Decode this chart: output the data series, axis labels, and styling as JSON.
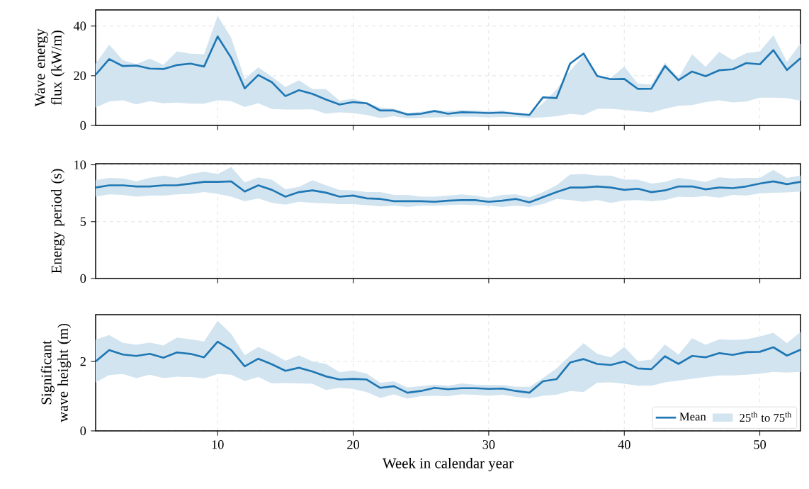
{
  "chart_data": [
    {
      "type": "line",
      "ylabel": "Wave energy flux (kW/m)",
      "x": [
        1,
        2,
        3,
        4,
        5,
        6,
        7,
        8,
        9,
        10,
        11,
        12,
        13,
        14,
        15,
        16,
        17,
        18,
        19,
        20,
        21,
        22,
        23,
        24,
        25,
        26,
        27,
        28,
        29,
        30,
        31,
        32,
        33,
        34,
        35,
        36,
        37,
        38,
        39,
        40,
        41,
        42,
        43,
        44,
        45,
        46,
        47,
        48,
        49,
        50,
        51,
        52,
        53
      ],
      "xlim": [
        1,
        53
      ],
      "xticks": [
        10,
        20,
        30,
        40,
        50
      ],
      "ylim": [
        0,
        46.5
      ],
      "yticks": [
        0,
        20,
        40
      ],
      "grid": true,
      "tick_labels": "y",
      "series": [
        {
          "color": "#1f77b4",
          "values": [
            20.4,
            26.7,
            23.9,
            24.1,
            22.9,
            22.7,
            24.3,
            24.9,
            23.7,
            35.8,
            27.2,
            14.9,
            20.3,
            17.4,
            11.8,
            14.2,
            12.7,
            10.4,
            8.4,
            9.4,
            8.9,
            6.0,
            6.0,
            4.4,
            4.7,
            5.8,
            4.7,
            5.3,
            5.2,
            5.0,
            5.2,
            4.7,
            4.2,
            11.3,
            11.0,
            24.9,
            28.9,
            19.9,
            18.6,
            18.7,
            14.7,
            14.8,
            23.9,
            18.2,
            21.7,
            19.8,
            22.2,
            22.6,
            25.1,
            24.6,
            30.3,
            22.3,
            27.0
          ],
          "upper": [
            24.9,
            32.5,
            26.3,
            24.7,
            26.9,
            24.4,
            29.8,
            28.9,
            28.7,
            44.1,
            35.3,
            18.7,
            23.4,
            19.6,
            15.5,
            18.2,
            14.6,
            14.6,
            9.9,
            10.8,
            9.2,
            7.2,
            6.8,
            5.0,
            5.5,
            6.2,
            5.8,
            6.3,
            6.0,
            5.8,
            6.0,
            5.2,
            4.6,
            9.0,
            14.4,
            22.0,
            28.2,
            19.9,
            19.1,
            23.7,
            16.8,
            16.5,
            25.3,
            19.1,
            28.7,
            23.6,
            29.6,
            26.3,
            29.1,
            29.8,
            36.3,
            25.6,
            33.0
          ],
          "lower": [
            7.2,
            9.6,
            10.1,
            8.5,
            9.8,
            8.9,
            9.2,
            8.8,
            8.8,
            10.1,
            9.8,
            7.4,
            8.9,
            6.6,
            6.4,
            6.4,
            6.5,
            4.7,
            5.3,
            4.9,
            4.2,
            3.0,
            3.7,
            2.8,
            3.0,
            3.2,
            3.4,
            3.5,
            3.5,
            3.2,
            3.4,
            3.4,
            3.0,
            3.3,
            3.7,
            4.6,
            4.2,
            6.6,
            6.7,
            6.3,
            5.7,
            5.2,
            6.7,
            7.9,
            8.2,
            9.4,
            10.1,
            9.3,
            9.6,
            11.2,
            11.2,
            11.0,
            10.0
          ]
        }
      ]
    },
    {
      "type": "line",
      "ylabel": "Energy period (s)",
      "x": [
        1,
        2,
        3,
        4,
        5,
        6,
        7,
        8,
        9,
        10,
        11,
        12,
        13,
        14,
        15,
        16,
        17,
        18,
        19,
        20,
        21,
        22,
        23,
        24,
        25,
        26,
        27,
        28,
        29,
        30,
        31,
        32,
        33,
        34,
        35,
        36,
        37,
        38,
        39,
        40,
        41,
        42,
        43,
        44,
        45,
        46,
        47,
        48,
        49,
        50,
        51,
        52,
        53
      ],
      "xlim": [
        1,
        53
      ],
      "xticks": [
        10,
        20,
        30,
        40,
        50
      ],
      "ylim": [
        0,
        10.1
      ],
      "yticks": [
        0,
        5,
        10
      ],
      "grid": true,
      "tick_labels": "y",
      "series": [
        {
          "color": "#1f77b4",
          "values": [
            8.0,
            8.2,
            8.2,
            8.1,
            8.1,
            8.2,
            8.2,
            8.35,
            8.5,
            8.5,
            8.55,
            7.65,
            8.2,
            7.8,
            7.2,
            7.6,
            7.75,
            7.55,
            7.2,
            7.3,
            7.05,
            7.0,
            6.8,
            6.8,
            6.8,
            6.75,
            6.85,
            6.9,
            6.9,
            6.75,
            6.85,
            7.0,
            6.7,
            7.15,
            7.6,
            8.0,
            8.0,
            8.1,
            8.0,
            7.8,
            7.9,
            7.6,
            7.75,
            8.1,
            8.1,
            7.85,
            8.0,
            7.95,
            8.1,
            8.35,
            8.55,
            8.3,
            8.5
          ],
          "upper": [
            8.65,
            8.85,
            8.8,
            8.55,
            8.85,
            9.05,
            8.85,
            9.2,
            9.4,
            9.2,
            9.8,
            8.45,
            8.9,
            8.7,
            7.85,
            8.05,
            8.65,
            8.2,
            7.8,
            7.75,
            7.6,
            7.6,
            7.35,
            7.35,
            7.2,
            7.2,
            7.3,
            7.4,
            7.3,
            7.1,
            7.35,
            7.4,
            7.15,
            7.6,
            8.2,
            9.15,
            9.2,
            9.05,
            9.05,
            8.7,
            8.7,
            8.35,
            8.5,
            8.85,
            8.7,
            8.5,
            8.9,
            8.8,
            8.85,
            8.85,
            9.55,
            8.85,
            9.05
          ],
          "lower": [
            7.2,
            7.4,
            7.35,
            7.2,
            7.3,
            7.3,
            7.4,
            7.45,
            7.6,
            7.45,
            7.2,
            6.8,
            7.05,
            6.65,
            6.5,
            6.75,
            6.65,
            6.6,
            6.55,
            6.55,
            6.45,
            6.35,
            6.4,
            6.3,
            6.4,
            6.4,
            6.45,
            6.5,
            6.45,
            6.4,
            6.3,
            6.4,
            6.3,
            6.55,
            7.0,
            6.9,
            6.75,
            6.9,
            6.65,
            6.85,
            6.9,
            6.8,
            6.9,
            7.2,
            7.15,
            7.25,
            7.1,
            7.35,
            7.3,
            7.5,
            7.55,
            7.58,
            7.65
          ]
        }
      ]
    },
    {
      "type": "line",
      "ylabel": "Significant wave height (m)",
      "xlabel": "Week in calendar year",
      "x": [
        1,
        2,
        3,
        4,
        5,
        6,
        7,
        8,
        9,
        10,
        11,
        12,
        13,
        14,
        15,
        16,
        17,
        18,
        19,
        20,
        21,
        22,
        23,
        24,
        25,
        26,
        27,
        28,
        29,
        30,
        31,
        32,
        33,
        34,
        35,
        36,
        37,
        38,
        39,
        40,
        41,
        42,
        43,
        44,
        45,
        46,
        47,
        48,
        49,
        50,
        51,
        52,
        53
      ],
      "xlim": [
        1,
        53
      ],
      "xticks": [
        10,
        20,
        30,
        40,
        50
      ],
      "ylim": [
        0,
        3.35
      ],
      "yticks": [
        0,
        2
      ],
      "grid": true,
      "legend": "bottom right",
      "annotations": [
        "25$^{th}$ to 75$^{th}$"
      ],
      "series": [
        {
          "name": "Mean",
          "color": "#1f77b4",
          "values": [
            2.0,
            2.33,
            2.2,
            2.16,
            2.22,
            2.11,
            2.26,
            2.22,
            2.12,
            2.57,
            2.33,
            1.86,
            2.08,
            1.92,
            1.73,
            1.82,
            1.71,
            1.57,
            1.48,
            1.5,
            1.48,
            1.24,
            1.29,
            1.1,
            1.15,
            1.24,
            1.2,
            1.23,
            1.23,
            1.21,
            1.22,
            1.15,
            1.1,
            1.43,
            1.49,
            1.97,
            2.07,
            1.93,
            1.9,
            2.0,
            1.8,
            1.78,
            2.15,
            1.93,
            2.16,
            2.12,
            2.24,
            2.19,
            2.27,
            2.28,
            2.41,
            2.17,
            2.34
          ],
          "upper": [
            2.63,
            2.76,
            2.54,
            2.48,
            2.55,
            2.46,
            2.69,
            2.64,
            2.58,
            3.17,
            2.8,
            2.18,
            2.42,
            2.24,
            2.02,
            2.18,
            2.0,
            1.93,
            1.69,
            1.74,
            1.65,
            1.39,
            1.43,
            1.25,
            1.29,
            1.33,
            1.3,
            1.37,
            1.33,
            1.32,
            1.32,
            1.27,
            1.27,
            1.52,
            1.8,
            2.17,
            2.53,
            2.22,
            2.12,
            2.42,
            2.01,
            2.05,
            2.49,
            2.2,
            2.67,
            2.48,
            2.64,
            2.62,
            2.64,
            2.72,
            2.83,
            2.53,
            2.85
          ],
          "lower": [
            1.4,
            1.61,
            1.64,
            1.52,
            1.62,
            1.52,
            1.56,
            1.55,
            1.51,
            1.64,
            1.62,
            1.44,
            1.55,
            1.37,
            1.38,
            1.37,
            1.36,
            1.18,
            1.24,
            1.21,
            1.12,
            0.95,
            1.05,
            0.93,
            1.0,
            1.01,
            1.0,
            1.05,
            1.04,
            1.01,
            1.04,
            0.98,
            0.94,
            1.01,
            1.04,
            1.15,
            1.12,
            1.39,
            1.4,
            1.36,
            1.3,
            1.3,
            1.4,
            1.45,
            1.5,
            1.55,
            1.6,
            1.6,
            1.62,
            1.65,
            1.7,
            1.68,
            1.7
          ]
        }
      ]
    }
  ]
}
